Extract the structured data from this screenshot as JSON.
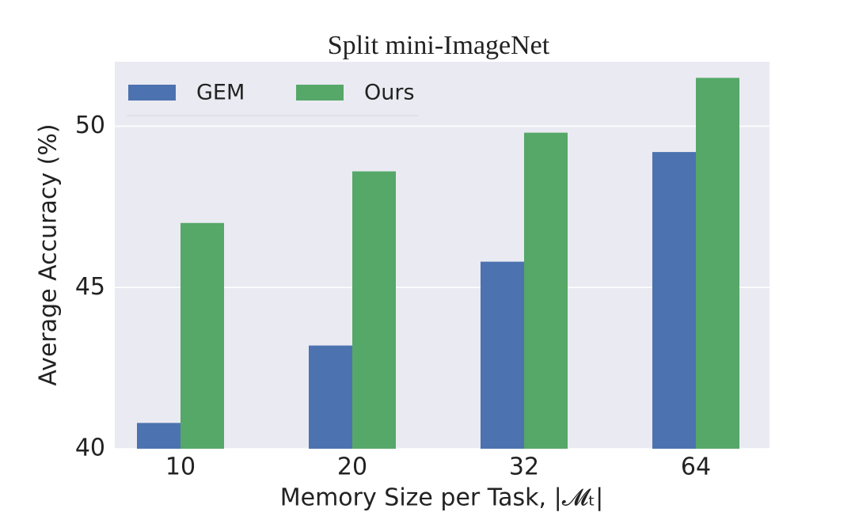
{
  "chart_data": {
    "type": "bar",
    "title": "Split mini-ImageNet",
    "x_label": "Memory Size per Task, |𝓜ₜ|",
    "y_label": "Average Accuracy (%)",
    "categories": [
      "10",
      "20",
      "32",
      "64"
    ],
    "series": [
      {
        "name": "GEM",
        "color": "#4c72b0",
        "values": [
          40.8,
          43.2,
          45.8,
          49.2
        ]
      },
      {
        "name": "Ours",
        "color": "#55a868",
        "values": [
          47.0,
          48.6,
          49.8,
          51.5
        ]
      }
    ],
    "ylim": [
      40,
      52
    ],
    "yticks": [
      40,
      45,
      50
    ],
    "grid": true,
    "legend": "upper left"
  }
}
